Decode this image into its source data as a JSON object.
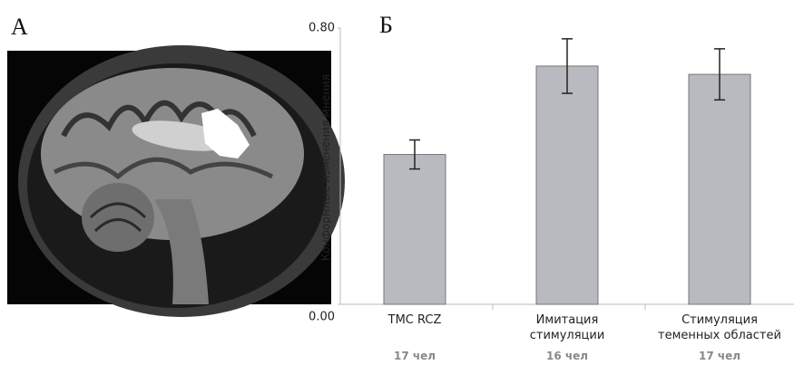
{
  "chart_data": {
    "type": "bar",
    "panel_labels": [
      "А",
      "Б"
    ],
    "y_label": "Конформные изменения мнения",
    "categories": [
      "ТМС RCZ",
      "Имитация\nстимуляции",
      "Стимуляция\nтеменных областей"
    ],
    "sample_sizes": [
      "17 чел",
      "16 чел",
      "17 чел"
    ],
    "series": [
      {
        "color": "#b9babf",
        "values": [
          0.434,
          0.69,
          0.666
        ],
        "errors": [
          0.042,
          0.079,
          0.074
        ]
      }
    ],
    "ylim": [
      0,
      0.8
    ],
    "yticks": [
      {
        "value": 0,
        "label": "0.00"
      },
      {
        "value": 0.8,
        "label": "0.80"
      }
    ]
  }
}
